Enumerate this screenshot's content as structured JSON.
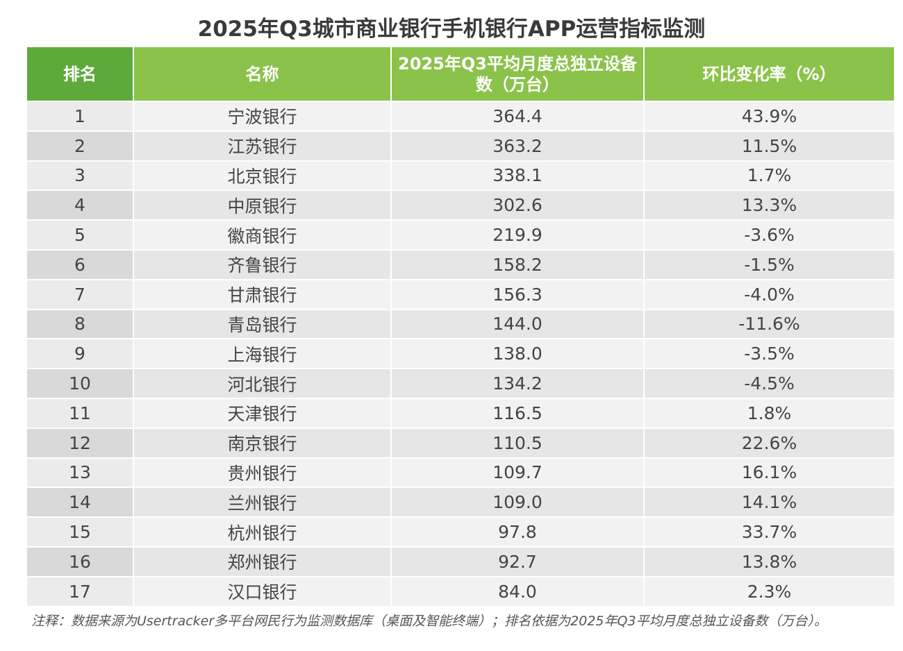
{
  "title": "2025年Q3城市商业银行手机银行APP运营指标监测",
  "columns": [
    "排名",
    "名称",
    "2025年Q3平均月度总独立设备数（万台）",
    "环比变化率（%）"
  ],
  "rows": [
    {
      "rank": "1",
      "name": "宁波银行",
      "devices": "364.4",
      "change": "43.9%"
    },
    {
      "rank": "2",
      "name": "江苏银行",
      "devices": "363.2",
      "change": "11.5%"
    },
    {
      "rank": "3",
      "name": "北京银行",
      "devices": "338.1",
      "change": "1.7%"
    },
    {
      "rank": "4",
      "name": "中原银行",
      "devices": "302.6",
      "change": "13.3%"
    },
    {
      "rank": "5",
      "name": "徽商银行",
      "devices": "219.9",
      "change": "-3.6%"
    },
    {
      "rank": "6",
      "name": "齐鲁银行",
      "devices": "158.2",
      "change": "-1.5%"
    },
    {
      "rank": "7",
      "name": "甘肃银行",
      "devices": "156.3",
      "change": "-4.0%"
    },
    {
      "rank": "8",
      "name": "青岛银行",
      "devices": "144.0",
      "change": "-11.6%"
    },
    {
      "rank": "9",
      "name": "上海银行",
      "devices": "138.0",
      "change": "-3.5%"
    },
    {
      "rank": "10",
      "name": "河北银行",
      "devices": "134.2",
      "change": "-4.5%"
    },
    {
      "rank": "11",
      "name": "天津银行",
      "devices": "116.5",
      "change": "1.8%"
    },
    {
      "rank": "12",
      "name": "南京银行",
      "devices": "110.5",
      "change": "22.6%"
    },
    {
      "rank": "13",
      "name": "贵州银行",
      "devices": "109.7",
      "change": "16.1%"
    },
    {
      "rank": "14",
      "name": "兰州银行",
      "devices": "109.0",
      "change": "14.1%"
    },
    {
      "rank": "15",
      "name": "杭州银行",
      "devices": "97.8",
      "change": "33.7%"
    },
    {
      "rank": "16",
      "name": "郑州银行",
      "devices": "92.7",
      "change": "13.8%"
    },
    {
      "rank": "17",
      "name": "汉口银行",
      "devices": "84.0",
      "change": "2.3%"
    }
  ],
  "note": "注释：数据来源为Usertracker多平台网民行为监测数据库（桌面及智能终端）；排名依据为2025年Q3平均月度总独立设备数（万台）。",
  "colors": {
    "header_green": "#8bc34a",
    "header_rank_green": "#5daa3b",
    "row_light": "#f2f2f2",
    "row_dark": "#e6e6e6"
  }
}
